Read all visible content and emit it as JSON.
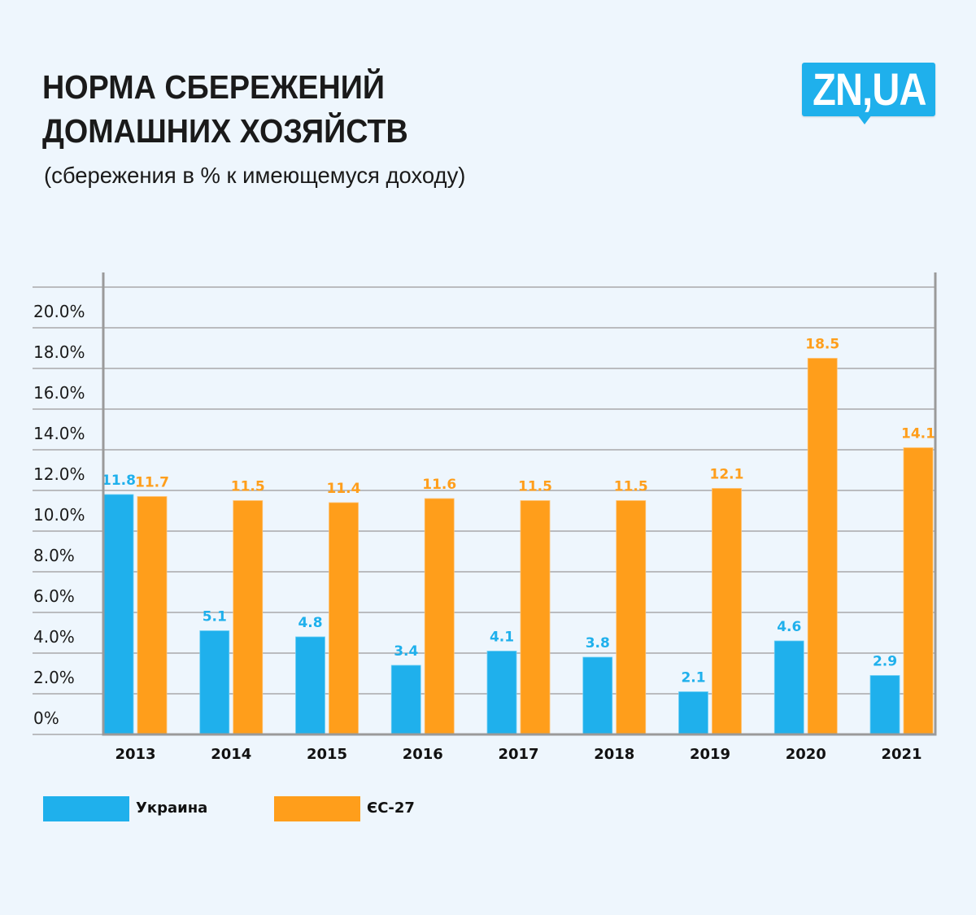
{
  "header": {
    "title_line1": "НОРМА СБЕРЕЖЕНИЙ",
    "title_line2": "ДОМАШНИХ ХОЗЯЙСТВ",
    "subtitle": "(сбережения в % к имеющемуся доходу)",
    "logo_text": "ZN,UA"
  },
  "colors": {
    "ukraine": "#1fb0ec",
    "eu27": "#ff9e1b",
    "grid": "#9a9a9a",
    "background": "#eef6fd"
  },
  "chart_data": {
    "type": "bar",
    "title": "НОРМА СБЕРЕЖЕНИЙ ДОМАШНИХ ХОЗЯЙСТВ",
    "subtitle": "(сбережения в % к имеющемуся доходу)",
    "xlabel": "",
    "ylabel": "",
    "categories": [
      "2013",
      "2014",
      "2015",
      "2016",
      "2017",
      "2018",
      "2019",
      "2020",
      "2021"
    ],
    "series": [
      {
        "name": "Украина",
        "color": "#1fb0ec",
        "values": [
          11.8,
          5.1,
          4.8,
          3.4,
          4.1,
          3.8,
          2.1,
          4.6,
          2.9
        ],
        "labels": [
          "11.8",
          "5.1",
          "4.8",
          "3.4",
          "4.1",
          "3.8",
          "2.1",
          "4.6",
          "2.9"
        ]
      },
      {
        "name": "ЄС-27",
        "color": "#ff9e1b",
        "values": [
          11.7,
          11.5,
          11.4,
          11.6,
          11.5,
          11.5,
          12.1,
          18.5,
          14.1
        ],
        "labels": [
          "11.7",
          "11.5",
          "11.4",
          "11.6",
          "11.5",
          "11.5",
          "12.1",
          "18.5",
          "14.1"
        ]
      }
    ],
    "y_ticks": [
      0,
      2,
      4,
      6,
      8,
      10,
      12,
      14,
      16,
      18,
      20
    ],
    "y_tick_labels": [
      "0%",
      "2.0%",
      "4.0%",
      "6.0%",
      "8.0%",
      "10.0%",
      "12.0%",
      "14.0%",
      "16.0%",
      "18.0%",
      "20.0%"
    ],
    "ylim": [
      0,
      22
    ],
    "grid": true,
    "legend": "bottom-left"
  },
  "legend": {
    "items": [
      {
        "label": "Украина"
      },
      {
        "label": "ЄС-27"
      }
    ]
  }
}
